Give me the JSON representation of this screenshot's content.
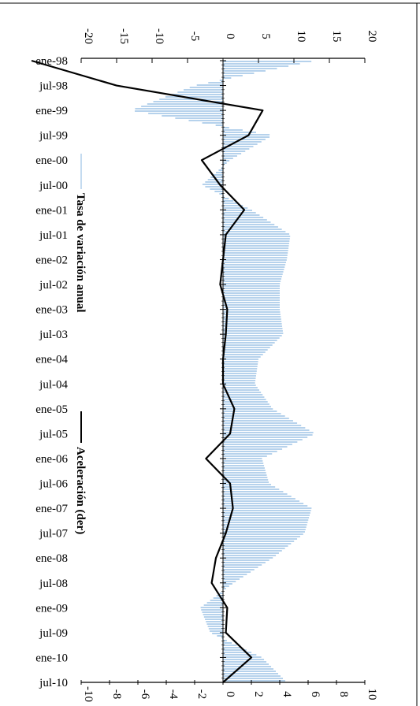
{
  "chart_data": {
    "type": "area",
    "orientation": "rotated-90",
    "categories": [
      "ene-98",
      "jul-98",
      "ene-99",
      "jul-99",
      "ene-00",
      "jul-00",
      "ene-01",
      "jul-01",
      "ene-02",
      "jul-02",
      "ene-03",
      "jul-03",
      "ene-04",
      "jul-04",
      "ene-05",
      "jul-05",
      "ene-06",
      "jul-06",
      "ene-07",
      "jul-07",
      "ene-08",
      "jul-08",
      "ene-09",
      "jul-09",
      "ene-10",
      "jul-10"
    ],
    "series": [
      {
        "name": "Tasa de variación anual",
        "kind": "area",
        "axis": "left",
        "color": "#9dc3e6",
        "values": [
          13,
          -4,
          -13,
          7,
          1,
          -3,
          4,
          9.5,
          9,
          8,
          8,
          8.5,
          5,
          4.5,
          7,
          13,
          5.5,
          6.5,
          12.5,
          11.5,
          7,
          1.5,
          -3.2,
          -1.8,
          5.5,
          9
        ]
      },
      {
        "name": "Aceleración (der)",
        "kind": "line",
        "axis": "right",
        "color": "#000000",
        "values": [
          -13.5,
          -7.5,
          2.8,
          1.8,
          -1.5,
          -0.2,
          1.5,
          0.2,
          0,
          -0.2,
          0.3,
          0.2,
          0,
          0,
          0.8,
          0.5,
          -1.2,
          0.5,
          0.7,
          0.2,
          -0.5,
          -0.8,
          0.3,
          0.2,
          2,
          0
        ]
      }
    ],
    "left_axis": {
      "ticks": [
        "-20",
        "-15",
        "-10",
        "-5",
        "0",
        "5",
        "10",
        "15",
        "20"
      ],
      "lim": [
        -20,
        20
      ]
    },
    "right_axis": {
      "ticks": [
        "-10",
        "-8",
        "-6",
        "-4",
        "-2",
        "0",
        "2",
        "4",
        "6",
        "8",
        "10"
      ],
      "lim": [
        -10,
        10
      ]
    },
    "legend": {
      "placement": "left",
      "items": [
        "Tasa de variación anual",
        "Aceleración (der)"
      ]
    },
    "grid": false
  }
}
